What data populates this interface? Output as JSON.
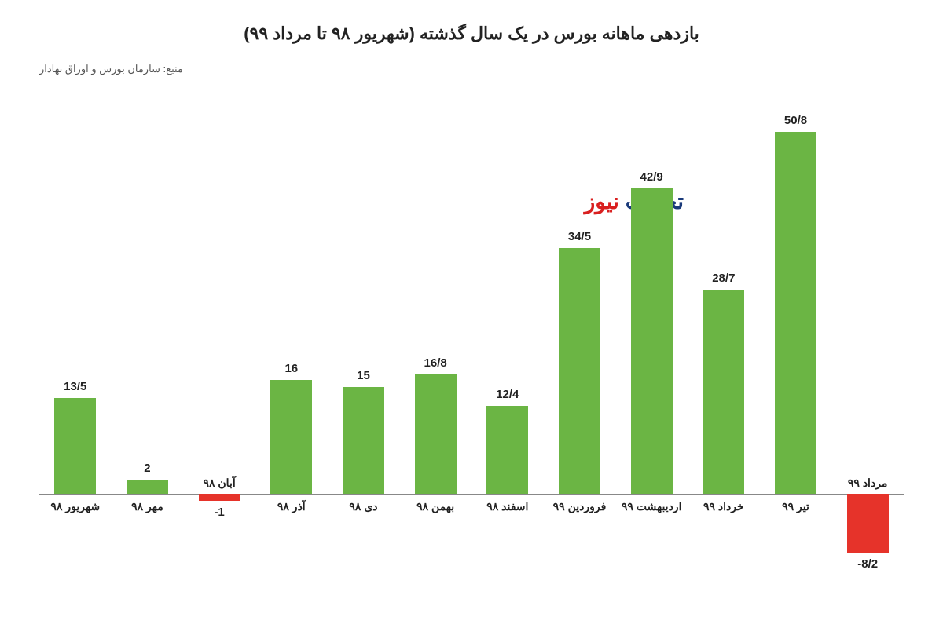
{
  "chart": {
    "type": "bar",
    "title": "بازدهی ماهانه بورس در یک سال گذشته (شهریور ۹۸ تا مرداد ۹۹)",
    "source": "منبع: سازمان بورس و اوراق بهادار",
    "watermark_part1": "تجارت",
    "watermark_part2": " نیوز",
    "watermark_color1": "#1a3a7a",
    "watermark_color2": "#d92020",
    "background_color": "#ffffff",
    "positive_color": "#6bb544",
    "negative_color": "#e6332a",
    "baseline_color": "#888888",
    "title_fontsize": 22,
    "label_fontsize": 15,
    "category_fontsize": 14,
    "bar_width_pct": 58,
    "y_max": 55,
    "y_min": -10,
    "categories": [
      "شهریور ۹۸",
      "مهر ۹۸",
      "آبان ۹۸",
      "آذر ۹۸",
      "دی ۹۸",
      "بهمن ۹۸",
      "اسفند ۹۸",
      "فروردین ۹۹",
      "اردیبهشت ۹۹",
      "خرداد ۹۹",
      "تیر ۹۹",
      "مرداد ۹۹"
    ],
    "values": [
      13.5,
      2,
      -1,
      16,
      15,
      16.8,
      12.4,
      34.5,
      42.9,
      28.7,
      50.8,
      -8.2
    ],
    "value_labels": [
      "13/5",
      "2",
      "-1",
      "16",
      "15",
      "16/8",
      "12/4",
      "34/5",
      "42/9",
      "28/7",
      "50/8",
      "-8/2"
    ]
  }
}
